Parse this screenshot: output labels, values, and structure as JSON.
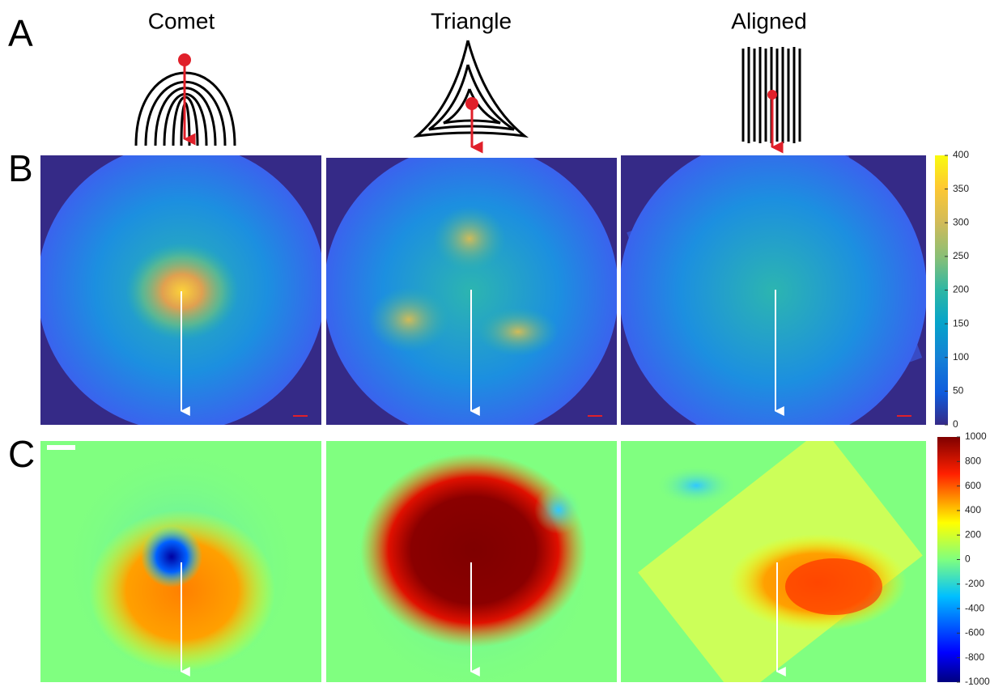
{
  "panel_labels": [
    "A",
    "B",
    "C"
  ],
  "column_titles": [
    "Comet",
    "Triangle",
    "Aligned"
  ],
  "colorbar_b": {
    "ticks": [
      0,
      50,
      100,
      150,
      200,
      250,
      300,
      350,
      400
    ]
  },
  "colorbar_c": {
    "ticks": [
      -1000,
      -800,
      -600,
      -400,
      -200,
      0,
      200,
      400,
      600,
      800,
      1000
    ]
  }
}
